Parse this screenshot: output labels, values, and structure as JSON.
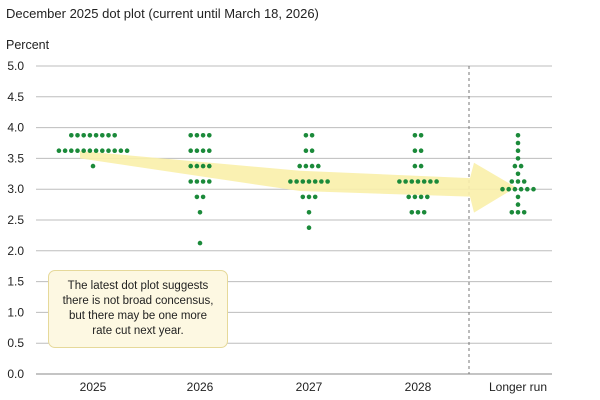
{
  "chart_data": {
    "type": "scatter",
    "title": "December 2025 dot plot (current until March 18, 2026)",
    "ylabel": "Percent",
    "xlabel": "",
    "ylim": [
      0,
      5
    ],
    "yticks": [
      "0.0",
      "0.5",
      "1.0",
      "1.5",
      "2.0",
      "2.5",
      "3.0",
      "3.5",
      "4.0",
      "4.5",
      "5.0"
    ],
    "categories": [
      "2025",
      "2026",
      "2027",
      "2028",
      "Longer run"
    ],
    "grid": true,
    "separator_before": "Longer run",
    "trend_arrow": true,
    "colors": {
      "dot": "#1b8a3a",
      "arrow": "#f9efaa",
      "grid": "#bdbdbd",
      "separator": "#777777"
    },
    "dots": [
      {
        "category": "2025",
        "counts": [
          [
            3.875,
            8
          ],
          [
            3.625,
            12
          ],
          [
            3.375,
            1
          ]
        ]
      },
      {
        "category": "2026",
        "counts": [
          [
            3.875,
            4
          ],
          [
            3.625,
            4
          ],
          [
            3.375,
            4
          ],
          [
            3.125,
            4
          ],
          [
            2.875,
            2
          ],
          [
            2.625,
            1
          ],
          [
            2.125,
            1
          ]
        ]
      },
      {
        "category": "2027",
        "counts": [
          [
            3.875,
            2
          ],
          [
            3.625,
            2
          ],
          [
            3.375,
            4
          ],
          [
            3.125,
            7
          ],
          [
            2.875,
            3
          ],
          [
            2.625,
            1
          ],
          [
            2.375,
            1
          ]
        ]
      },
      {
        "category": "2028",
        "counts": [
          [
            3.875,
            2
          ],
          [
            3.625,
            2
          ],
          [
            3.375,
            2
          ],
          [
            3.125,
            7
          ],
          [
            2.875,
            4
          ],
          [
            2.625,
            3
          ]
        ]
      },
      {
        "category": "Longer run",
        "counts": [
          [
            3.875,
            1
          ],
          [
            3.75,
            1
          ],
          [
            3.625,
            1
          ],
          [
            3.5,
            1
          ],
          [
            3.375,
            2
          ],
          [
            3.25,
            1
          ],
          [
            3.125,
            3
          ],
          [
            3.0,
            6
          ],
          [
            2.875,
            1
          ],
          [
            2.75,
            1
          ],
          [
            2.625,
            3
          ]
        ]
      }
    ]
  },
  "annotation": {
    "text": "The latest dot plot suggests there is not broad concensus, but there may be one more rate cut next year."
  }
}
